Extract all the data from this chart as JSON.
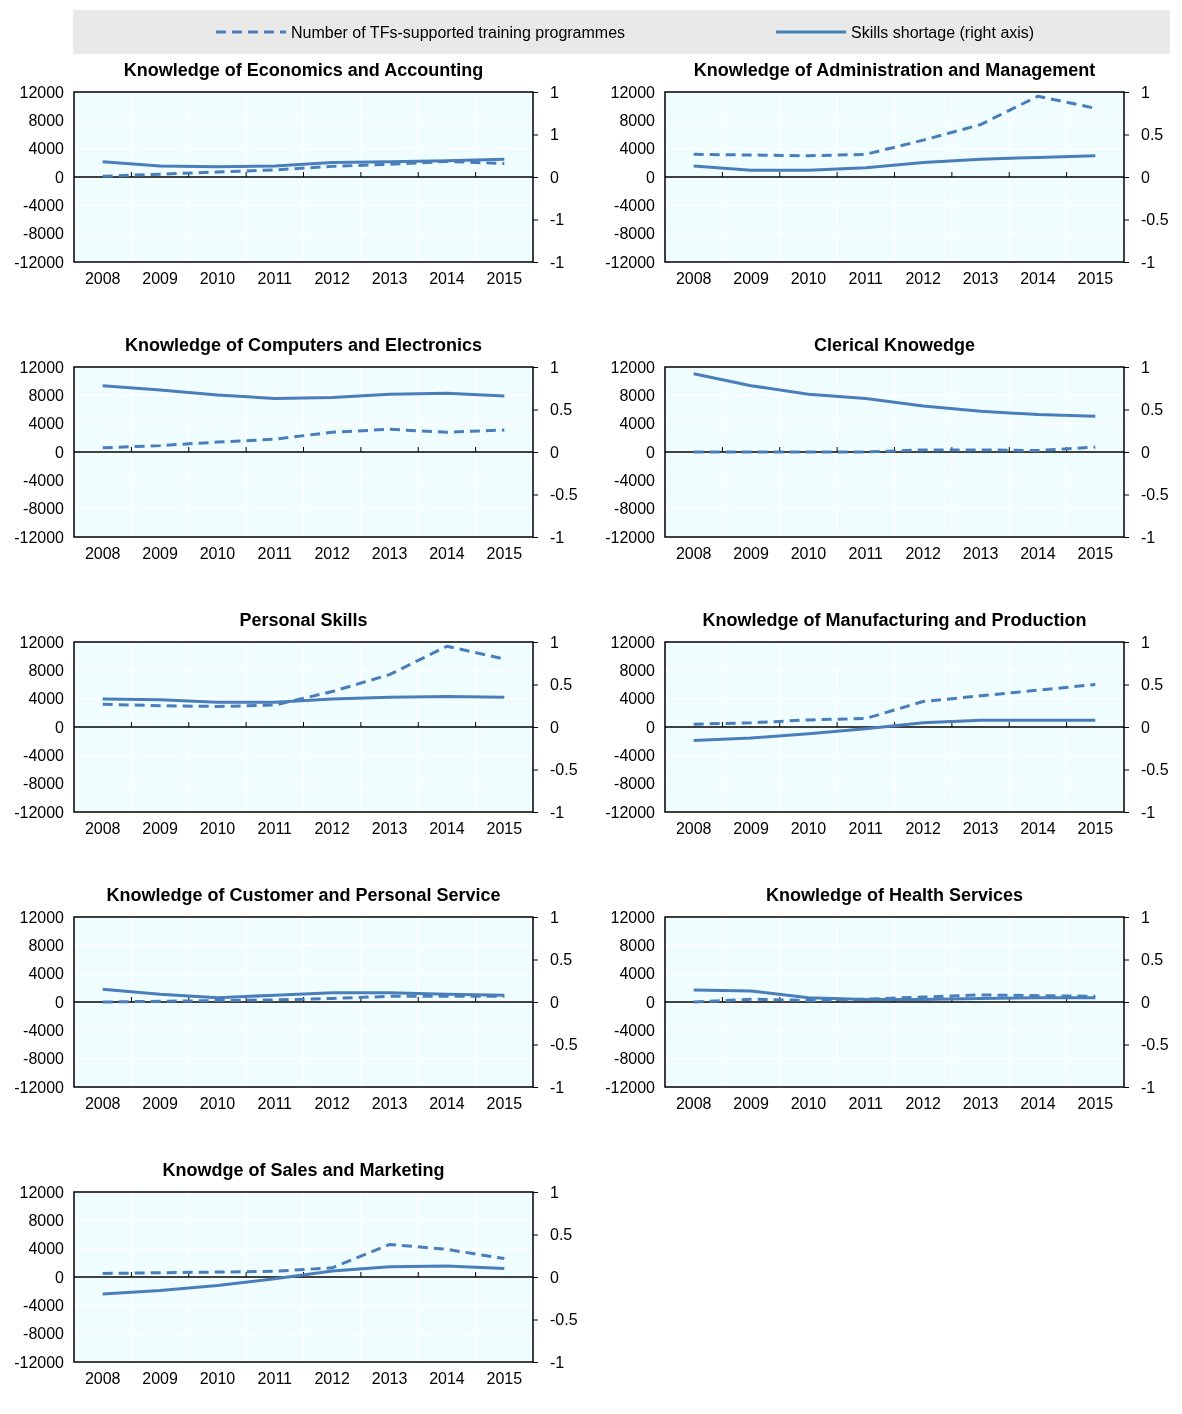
{
  "chart_data": [
    {
      "type": "line",
      "title": "Knowledge of Economics and Accounting",
      "categories": [
        "2008",
        "2009",
        "2010",
        "2011",
        "2012",
        "2013",
        "2014",
        "2015"
      ],
      "legend": "top",
      "grid": true,
      "ylim": [
        -12000,
        12000
      ],
      "yticks": [
        -12000,
        -8000,
        -4000,
        0,
        4000,
        8000,
        12000
      ],
      "y2lim": [
        -1,
        1
      ],
      "y2ticks": [
        -1,
        {
          "value": -0.5,
          "label": "-1"
        },
        0,
        {
          "value": 0.5,
          "label": "1"
        },
        1
      ],
      "series": [
        {
          "name": "Number of TFs-supported training programmes",
          "color": "#4a7ebb",
          "line_style": "dashed",
          "values": [
            100,
            400,
            700,
            1000,
            1500,
            1800,
            2200,
            1900
          ]
        },
        {
          "name": "Skills shortage (right axis)",
          "color": "#4a7ebb",
          "line_style": "solid",
          "axis": "y2",
          "values": [
            0.18,
            0.13,
            0.12,
            0.13,
            0.17,
            0.18,
            0.19,
            0.21
          ]
        }
      ]
    },
    {
      "type": "line",
      "title": "Knowledge of Administration and Management",
      "categories": [
        "2008",
        "2009",
        "2010",
        "2011",
        "2012",
        "2013",
        "2014",
        "2015"
      ],
      "grid": true,
      "ylim": [
        -12000,
        12000
      ],
      "yticks": [
        -12000,
        -8000,
        -4000,
        0,
        4000,
        8000,
        12000
      ],
      "y2lim": [
        -1,
        1
      ],
      "y2ticks": [
        -1,
        -0.5,
        0,
        0.5,
        1
      ],
      "series": [
        {
          "color": "#4a7ebb",
          "line_style": "dashed",
          "values": [
            3200,
            3100,
            3000,
            3200,
            5200,
            7400,
            11400,
            9700
          ]
        },
        {
          "color": "#4a7ebb",
          "line_style": "solid",
          "axis": "y2",
          "values": [
            0.13,
            0.08,
            0.08,
            0.11,
            0.17,
            0.21,
            0.23,
            0.25
          ]
        }
      ]
    },
    {
      "type": "line",
      "title": "Knowledge of Computers and Electronics",
      "categories": [
        "2008",
        "2009",
        "2010",
        "2011",
        "2012",
        "2013",
        "2014",
        "2015"
      ],
      "grid": true,
      "ylim": [
        -12000,
        12000
      ],
      "yticks": [
        -12000,
        -8000,
        -4000,
        0,
        4000,
        8000,
        12000
      ],
      "y2lim": [
        -1,
        1
      ],
      "y2ticks": [
        -1,
        -0.5,
        0,
        0.5,
        1
      ],
      "series": [
        {
          "color": "#4a7ebb",
          "line_style": "dashed",
          "values": [
            600,
            900,
            1400,
            1800,
            2800,
            3200,
            2800,
            3100
          ]
        },
        {
          "color": "#4a7ebb",
          "line_style": "solid",
          "axis": "y2",
          "values": [
            0.78,
            0.73,
            0.67,
            0.63,
            0.64,
            0.68,
            0.69,
            0.66
          ]
        }
      ]
    },
    {
      "type": "line",
      "title": "Clerical Knowedge",
      "categories": [
        "2008",
        "2009",
        "2010",
        "2011",
        "2012",
        "2013",
        "2014",
        "2015"
      ],
      "grid": true,
      "ylim": [
        -12000,
        12000
      ],
      "yticks": [
        -12000,
        -8000,
        -4000,
        0,
        4000,
        8000,
        12000
      ],
      "y2lim": [
        -1,
        1
      ],
      "y2ticks": [
        -1,
        -0.5,
        0,
        0.5,
        1
      ],
      "series": [
        {
          "color": "#4a7ebb",
          "line_style": "dashed",
          "values": [
            0,
            0,
            0,
            0,
            300,
            300,
            200,
            700
          ]
        },
        {
          "color": "#4a7ebb",
          "line_style": "solid",
          "axis": "y2",
          "values": [
            0.92,
            0.78,
            0.68,
            0.63,
            0.54,
            0.48,
            0.44,
            0.42
          ]
        }
      ]
    },
    {
      "type": "line",
      "title": "Personal Skills",
      "categories": [
        "2008",
        "2009",
        "2010",
        "2011",
        "2012",
        "2013",
        "2014",
        "2015"
      ],
      "grid": true,
      "ylim": [
        -12000,
        12000
      ],
      "yticks": [
        -12000,
        -8000,
        -4000,
        0,
        4000,
        8000,
        12000
      ],
      "y2lim": [
        -1,
        1
      ],
      "y2ticks": [
        -1,
        -0.5,
        0,
        0.5,
        1
      ],
      "series": [
        {
          "color": "#4a7ebb",
          "line_style": "dashed",
          "values": [
            3200,
            3000,
            2900,
            3100,
            5000,
            7400,
            11400,
            9600
          ]
        },
        {
          "color": "#4a7ebb",
          "line_style": "solid",
          "axis": "y2",
          "values": [
            0.33,
            0.32,
            0.29,
            0.29,
            0.33,
            0.35,
            0.36,
            0.35
          ]
        }
      ]
    },
    {
      "type": "line",
      "title": "Knowledge of Manufacturing and Production",
      "categories": [
        "2008",
        "2009",
        "2010",
        "2011",
        "2012",
        "2013",
        "2014",
        "2015"
      ],
      "grid": true,
      "ylim": [
        -12000,
        12000
      ],
      "yticks": [
        -12000,
        -8000,
        -4000,
        0,
        4000,
        8000,
        12000
      ],
      "y2lim": [
        -1,
        1
      ],
      "y2ticks": [
        -1,
        -0.5,
        0,
        0.5,
        1
      ],
      "series": [
        {
          "color": "#4a7ebb",
          "line_style": "dashed",
          "values": [
            400,
            600,
            1000,
            1200,
            3600,
            4400,
            5200,
            6000
          ]
        },
        {
          "color": "#4a7ebb",
          "line_style": "solid",
          "axis": "y2",
          "values": [
            -0.16,
            -0.13,
            -0.08,
            -0.02,
            0.05,
            0.08,
            0.08,
            0.08
          ]
        }
      ]
    },
    {
      "type": "line",
      "title": "Knowledge of Customer and Personal Service",
      "categories": [
        "2008",
        "2009",
        "2010",
        "2011",
        "2012",
        "2013",
        "2014",
        "2015"
      ],
      "grid": true,
      "ylim": [
        -12000,
        12000
      ],
      "yticks": [
        -12000,
        -8000,
        -4000,
        0,
        4000,
        8000,
        12000
      ],
      "y2lim": [
        -1,
        1
      ],
      "y2ticks": [
        -1,
        -0.5,
        0,
        0.5,
        1
      ],
      "series": [
        {
          "color": "#4a7ebb",
          "line_style": "dashed",
          "values": [
            0,
            100,
            200,
            300,
            500,
            800,
            800,
            800
          ]
        },
        {
          "color": "#4a7ebb",
          "line_style": "solid",
          "axis": "y2",
          "values": [
            0.15,
            0.09,
            0.05,
            0.08,
            0.11,
            0.11,
            0.09,
            0.08
          ]
        }
      ]
    },
    {
      "type": "line",
      "title": "Knowledge of Health Services",
      "categories": [
        "2008",
        "2009",
        "2010",
        "2011",
        "2012",
        "2013",
        "2014",
        "2015"
      ],
      "grid": true,
      "ylim": [
        -12000,
        12000
      ],
      "yticks": [
        -12000,
        -8000,
        -4000,
        0,
        4000,
        8000,
        12000
      ],
      "y2lim": [
        -1,
        1
      ],
      "y2ticks": [
        -1,
        -0.5,
        0,
        0.5,
        1
      ],
      "series": [
        {
          "color": "#4a7ebb",
          "line_style": "dashed",
          "values": [
            0,
            400,
            200,
            400,
            700,
            1000,
            900,
            800
          ]
        },
        {
          "color": "#4a7ebb",
          "line_style": "solid",
          "axis": "y2",
          "values": [
            0.14,
            0.13,
            0.05,
            0.03,
            0.03,
            0.04,
            0.05,
            0.05
          ]
        }
      ]
    },
    {
      "type": "line",
      "title": "Knowdge of Sales and Marketing",
      "categories": [
        "2008",
        "2009",
        "2010",
        "2011",
        "2012",
        "2013",
        "2014",
        "2015"
      ],
      "grid": true,
      "ylim": [
        -12000,
        12000
      ],
      "yticks": [
        -12000,
        -8000,
        -4000,
        0,
        4000,
        8000,
        12000
      ],
      "y2lim": [
        -1,
        1
      ],
      "y2ticks": [
        -1,
        -0.5,
        0,
        0.5,
        1
      ],
      "series": [
        {
          "color": "#4a7ebb",
          "line_style": "dashed",
          "values": [
            500,
            600,
            700,
            800,
            1300,
            4600,
            3900,
            2600
          ]
        },
        {
          "color": "#4a7ebb",
          "line_style": "solid",
          "axis": "y2",
          "values": [
            -0.2,
            -0.16,
            -0.1,
            -0.02,
            0.07,
            0.12,
            0.13,
            0.1
          ]
        }
      ]
    }
  ]
}
